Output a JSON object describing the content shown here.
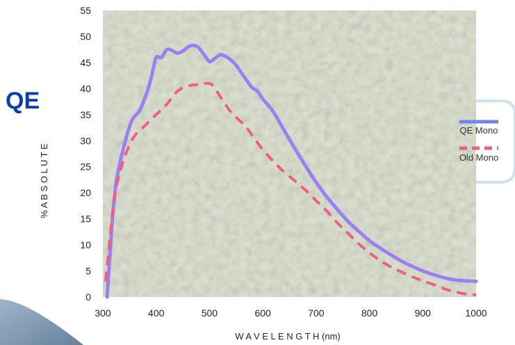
{
  "logo_text": "QE",
  "colors": {
    "plot_background": "#dde3d3",
    "qe_mono": "#9c7ff0",
    "old_mono": "#f0607a",
    "legend_accent": "#6f86ec",
    "logo": "#0b3fa8",
    "corner_swoosh": "#5f7f9e"
  },
  "chart_data": {
    "type": "line",
    "title": "",
    "xlabel": "W A V E L E N G T H (nm)",
    "ylabel": "% A B S O L U T E",
    "xlim": [
      300,
      1000
    ],
    "ylim": [
      0,
      55
    ],
    "x_ticks": [
      300,
      400,
      500,
      600,
      700,
      800,
      900,
      1000
    ],
    "y_ticks": [
      0,
      5,
      10,
      15,
      20,
      25,
      30,
      35,
      40,
      45,
      50,
      55
    ],
    "grid": false,
    "legend_position": "right",
    "series": [
      {
        "name": "QE Mono",
        "style": "solid",
        "x": [
          308,
          312,
          318,
          325,
          335,
          345,
          355,
          370,
          385,
          395,
          400,
          410,
          420,
          430,
          440,
          450,
          460,
          470,
          480,
          490,
          500,
          510,
          520,
          530,
          540,
          550,
          560,
          570,
          580,
          590,
          600,
          620,
          640,
          660,
          680,
          700,
          720,
          740,
          760,
          780,
          800,
          820,
          840,
          860,
          880,
          900,
          920,
          940,
          960,
          980,
          1000
        ],
        "y": [
          0,
          6,
          15,
          22,
          27,
          31,
          34,
          36,
          40,
          44,
          46,
          46,
          47.5,
          47.3,
          46.8,
          47.2,
          48,
          48.3,
          47.8,
          46.5,
          45.2,
          45.8,
          46.5,
          46.2,
          45.5,
          44.5,
          43,
          41.5,
          40.2,
          39.5,
          38,
          35.5,
          32,
          28.5,
          25.2,
          22,
          19.2,
          16.8,
          14.5,
          12.6,
          10.8,
          9.4,
          8.1,
          6.9,
          5.9,
          5.0,
          4.3,
          3.7,
          3.3,
          3.1,
          3.0
        ]
      },
      {
        "name": "Old Mono",
        "style": "dashed",
        "x": [
          305,
          310,
          318,
          325,
          335,
          345,
          360,
          380,
          400,
          420,
          440,
          460,
          480,
          500,
          510,
          520,
          530,
          540,
          550,
          560,
          570,
          580,
          600,
          620,
          640,
          660,
          680,
          700,
          720,
          740,
          760,
          780,
          800,
          820,
          840,
          860,
          880,
          900,
          920,
          940,
          960,
          980,
          1000
        ],
        "y": [
          3,
          8,
          16,
          21,
          25,
          28,
          31,
          33,
          35,
          37,
          39.5,
          40.5,
          40.8,
          41,
          40,
          38.5,
          37,
          35.5,
          34.5,
          33.5,
          32.5,
          31,
          28.3,
          26,
          24,
          22.3,
          20.5,
          18.5,
          16.5,
          14.2,
          12.2,
          10.2,
          8.5,
          7.0,
          5.8,
          4.8,
          3.9,
          3.1,
          2.4,
          1.6,
          1.0,
          0.6,
          0.4
        ]
      }
    ]
  }
}
